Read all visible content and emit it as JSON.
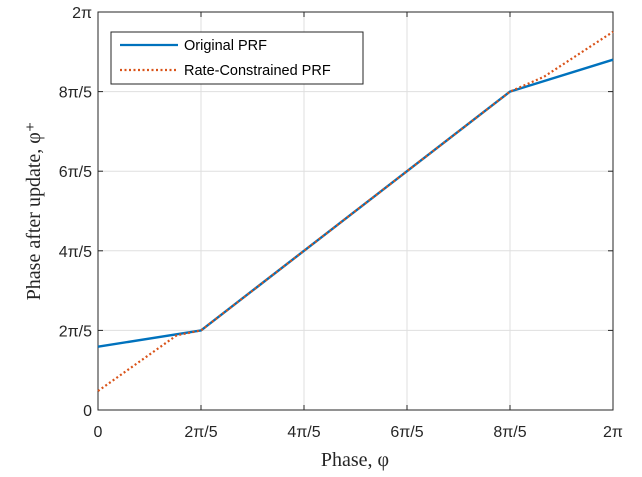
{
  "chart_data": {
    "type": "line",
    "xlabel": "Phase, φ",
    "ylabel": "Phase after update, φ⁺",
    "xlim": [
      0,
      6.2832
    ],
    "ylim": [
      0,
      6.2832
    ],
    "x_ticks": [
      0,
      1.2566,
      2.5133,
      3.7699,
      5.0265,
      6.2832
    ],
    "x_tick_labels": [
      "0",
      "2π/5",
      "4π/5",
      "6π/5",
      "8π/5",
      "2π"
    ],
    "y_ticks": [
      0,
      1.2566,
      2.5133,
      3.7699,
      5.0265,
      6.2832
    ],
    "y_tick_labels": [
      "0",
      "2π/5",
      "4π/5",
      "6π/5",
      "8π/5",
      "2π"
    ],
    "grid": true,
    "legend_position": "top-left",
    "series": [
      {
        "name": "Original PRF",
        "color": "#0072BD",
        "style": "solid",
        "x": [
          0,
          1.2566,
          5.0265,
          6.2832
        ],
        "y": [
          1.0,
          1.2566,
          5.0265,
          5.53
        ]
      },
      {
        "name": "Rate-Constrained PRF",
        "color": "#D95319",
        "style": "dotted",
        "x": [
          0,
          0.96,
          1.2566,
          5.0265,
          5.44,
          6.2832
        ],
        "y": [
          0.3,
          1.18,
          1.2566,
          5.0265,
          5.26,
          5.97
        ]
      }
    ]
  }
}
